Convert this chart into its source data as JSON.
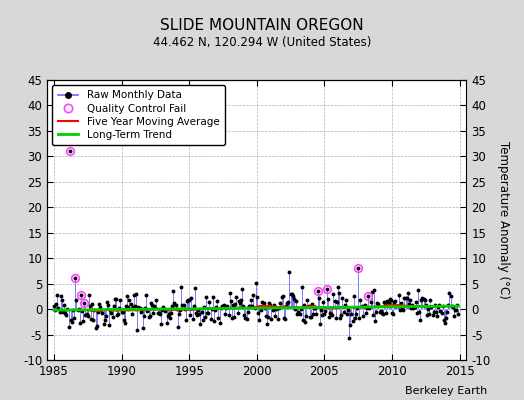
{
  "title": "SLIDE MOUNTAIN OREGON",
  "subtitle": "44.462 N, 120.294 W (United States)",
  "ylabel_right": "Temperature Anomaly (°C)",
  "watermark": "Berkeley Earth",
  "xlim": [
    1984.5,
    2015.5
  ],
  "ylim": [
    -10,
    45
  ],
  "yticks": [
    -10,
    -5,
    0,
    5,
    10,
    15,
    20,
    25,
    30,
    35,
    40,
    45
  ],
  "xticks": [
    1985,
    1990,
    1995,
    2000,
    2005,
    2010,
    2015
  ],
  "bg_color": "#d8d8d8",
  "plot_bg_color": "#ffffff",
  "grid_color": "#b0b0c8",
  "raw_line_color": "#6666ff",
  "raw_marker_color": "#000000",
  "ma_color": "#ff0000",
  "trend_color": "#00cc00",
  "qc_color": "#ff44ff",
  "seed": 42
}
